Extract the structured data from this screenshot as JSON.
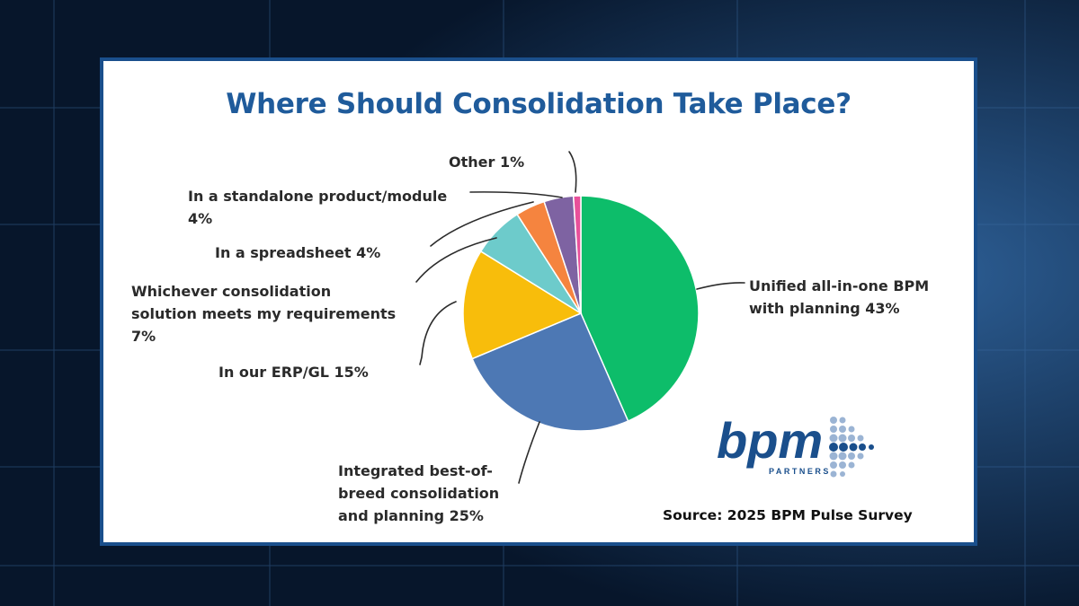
{
  "chart_data": {
    "type": "pie",
    "title": "Where Should Consolidation Take Place?",
    "slices": [
      {
        "label": "Unified all-in-one BPM with planning 43%",
        "value": 43,
        "color": "#0dbd6a"
      },
      {
        "label": "Integrated best-of-breed consolidation and planning 25%",
        "value": 25,
        "color": "#4d78b4"
      },
      {
        "label": "In our ERP/GL 15%",
        "value": 15,
        "color": "#f8bd0b"
      },
      {
        "label": "Whichever consolidation solution meets my requirements 7%",
        "value": 7,
        "color": "#6dcbcb"
      },
      {
        "label": "In a spreadsheet 4%",
        "value": 4,
        "color": "#f5843f"
      },
      {
        "label": "In a standalone product/module 4%",
        "value": 4,
        "color": "#7e63a2"
      },
      {
        "label": "Other 1%",
        "value": 1,
        "color": "#e8509a"
      }
    ],
    "legend": "none"
  },
  "labels": {
    "unified": [
      "Unified all-in-one BPM",
      "with planning 43%"
    ],
    "integrated": [
      "Integrated best-of-",
      "breed consolidation",
      "and planning 25%"
    ],
    "erp": [
      "In our ERP/GL 15%"
    ],
    "whichever": [
      "Whichever consolidation",
      "solution meets my requirements",
      "7%"
    ],
    "spreadsheet": [
      "In a spreadsheet 4%"
    ],
    "standalone": [
      "In a standalone product/module",
      "4%"
    ],
    "other": [
      "Other 1%"
    ]
  },
  "source": "Source: 2025 BPM Pulse Survey",
  "logo": {
    "main": "bpm",
    "sub": "PARTNERS",
    "color": "#1a4f8c"
  },
  "colors": {
    "frame": "#1a4f8c",
    "title": "#1f5b9b",
    "background": "#0a1b33"
  }
}
